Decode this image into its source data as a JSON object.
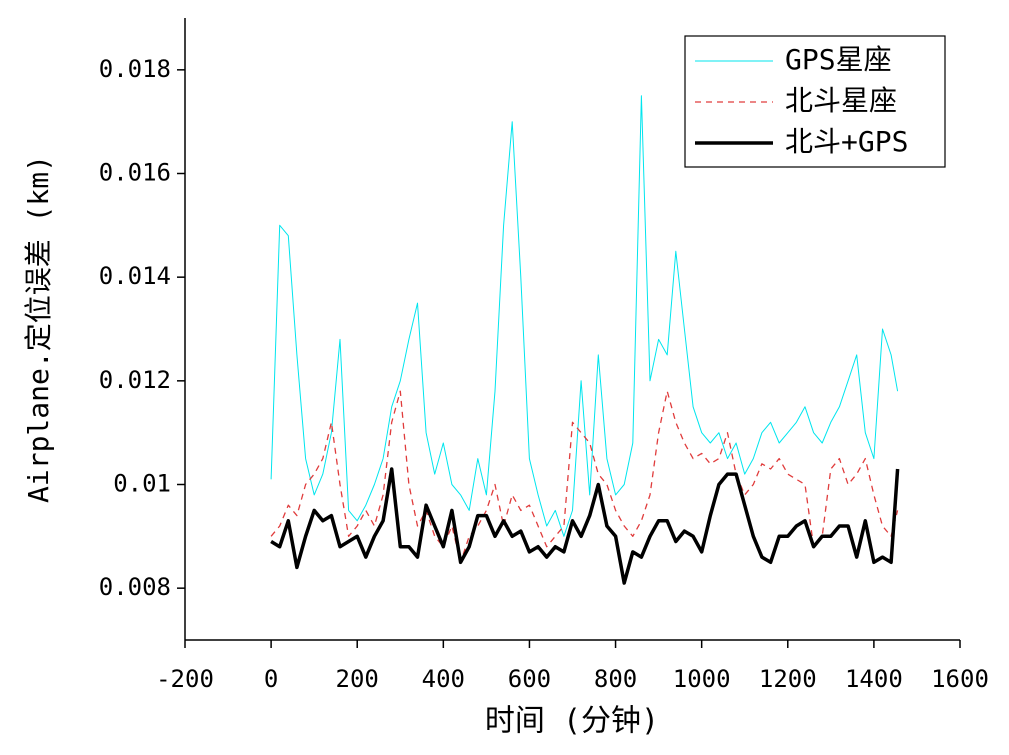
{
  "chart_data": {
    "type": "line",
    "xlabel": "时间 (分钟)",
    "ylabel": "Airplane.定位误差 (km)",
    "xlim": [
      -200,
      1600
    ],
    "xticks": [
      -200,
      0,
      200,
      400,
      600,
      800,
      1000,
      1200,
      1400,
      1600
    ],
    "ylim": [
      0.007,
      0.019
    ],
    "yticks": [
      0.008,
      0.01,
      0.012,
      0.014,
      0.016,
      0.018
    ],
    "legend": "upper right",
    "x": [
      0,
      20,
      40,
      60,
      80,
      100,
      120,
      140,
      160,
      180,
      200,
      220,
      240,
      260,
      280,
      300,
      320,
      340,
      360,
      380,
      400,
      420,
      440,
      460,
      480,
      500,
      520,
      540,
      560,
      580,
      600,
      620,
      640,
      660,
      680,
      700,
      720,
      740,
      760,
      780,
      800,
      820,
      840,
      860,
      880,
      900,
      920,
      940,
      960,
      980,
      1000,
      1020,
      1040,
      1060,
      1080,
      1100,
      1120,
      1140,
      1160,
      1180,
      1200,
      1220,
      1240,
      1260,
      1280,
      1300,
      1320,
      1340,
      1360,
      1380,
      1400,
      1420,
      1440,
      1455
    ],
    "series": [
      {
        "name": "GPS星座",
        "color": "#00e5ee",
        "linestyle": "solid",
        "linewidth": 1,
        "values": [
          0.0101,
          0.015,
          0.0148,
          0.0125,
          0.0105,
          0.0098,
          0.0102,
          0.011,
          0.0128,
          0.0095,
          0.0093,
          0.0096,
          0.01,
          0.0105,
          0.0115,
          0.012,
          0.0128,
          0.0135,
          0.011,
          0.0102,
          0.0108,
          0.01,
          0.0098,
          0.0095,
          0.0105,
          0.0098,
          0.0118,
          0.015,
          0.017,
          0.014,
          0.0105,
          0.0098,
          0.0092,
          0.0095,
          0.009,
          0.0095,
          0.012,
          0.0098,
          0.0125,
          0.0105,
          0.0098,
          0.01,
          0.0108,
          0.0175,
          0.012,
          0.0128,
          0.0125,
          0.0145,
          0.013,
          0.0115,
          0.011,
          0.0108,
          0.011,
          0.0105,
          0.0108,
          0.0102,
          0.0105,
          0.011,
          0.0112,
          0.0108,
          0.011,
          0.0112,
          0.0115,
          0.011,
          0.0108,
          0.0112,
          0.0115,
          0.012,
          0.0125,
          0.011,
          0.0105,
          0.013,
          0.0125,
          0.0118
        ]
      },
      {
        "name": "北斗星座",
        "color": "#e03c3c",
        "linestyle": "dashed",
        "linewidth": 1.3,
        "values": [
          0.009,
          0.0092,
          0.0096,
          0.0094,
          0.01,
          0.0102,
          0.0105,
          0.0112,
          0.01,
          0.009,
          0.0092,
          0.0095,
          0.0092,
          0.0098,
          0.0112,
          0.0118,
          0.01,
          0.0092,
          0.0095,
          0.009,
          0.0088,
          0.0092,
          0.0085,
          0.009,
          0.0092,
          0.0095,
          0.01,
          0.0092,
          0.0098,
          0.0095,
          0.0096,
          0.0092,
          0.0088,
          0.009,
          0.0092,
          0.0112,
          0.011,
          0.0108,
          0.0102,
          0.01,
          0.0095,
          0.0092,
          0.009,
          0.0093,
          0.0098,
          0.011,
          0.0118,
          0.0112,
          0.0108,
          0.0105,
          0.0106,
          0.0104,
          0.0105,
          0.011,
          0.0102,
          0.0098,
          0.01,
          0.0104,
          0.0103,
          0.0105,
          0.0102,
          0.0101,
          0.01,
          0.0088,
          0.009,
          0.0103,
          0.0105,
          0.01,
          0.0102,
          0.0105,
          0.0098,
          0.0092,
          0.009,
          0.0095
        ]
      },
      {
        "name": "北斗+GPS",
        "color": "#000000",
        "linestyle": "solid",
        "linewidth": 3.5,
        "values": [
          0.0089,
          0.0088,
          0.0093,
          0.0084,
          0.009,
          0.0095,
          0.0093,
          0.0094,
          0.0088,
          0.0089,
          0.009,
          0.0086,
          0.009,
          0.0093,
          0.0103,
          0.0088,
          0.0088,
          0.0086,
          0.0096,
          0.0092,
          0.0088,
          0.0095,
          0.0085,
          0.0088,
          0.0094,
          0.0094,
          0.009,
          0.0093,
          0.009,
          0.0091,
          0.0087,
          0.0088,
          0.0086,
          0.0088,
          0.0087,
          0.0093,
          0.009,
          0.0094,
          0.01,
          0.0092,
          0.009,
          0.0081,
          0.0087,
          0.0086,
          0.009,
          0.0093,
          0.0093,
          0.0089,
          0.0091,
          0.009,
          0.0087,
          0.0094,
          0.01,
          0.0102,
          0.0102,
          0.0096,
          0.009,
          0.0086,
          0.0085,
          0.009,
          0.009,
          0.0092,
          0.0093,
          0.0088,
          0.009,
          0.009,
          0.0092,
          0.0092,
          0.0086,
          0.0093,
          0.0085,
          0.0086,
          0.0085,
          0.0103
        ]
      }
    ]
  }
}
